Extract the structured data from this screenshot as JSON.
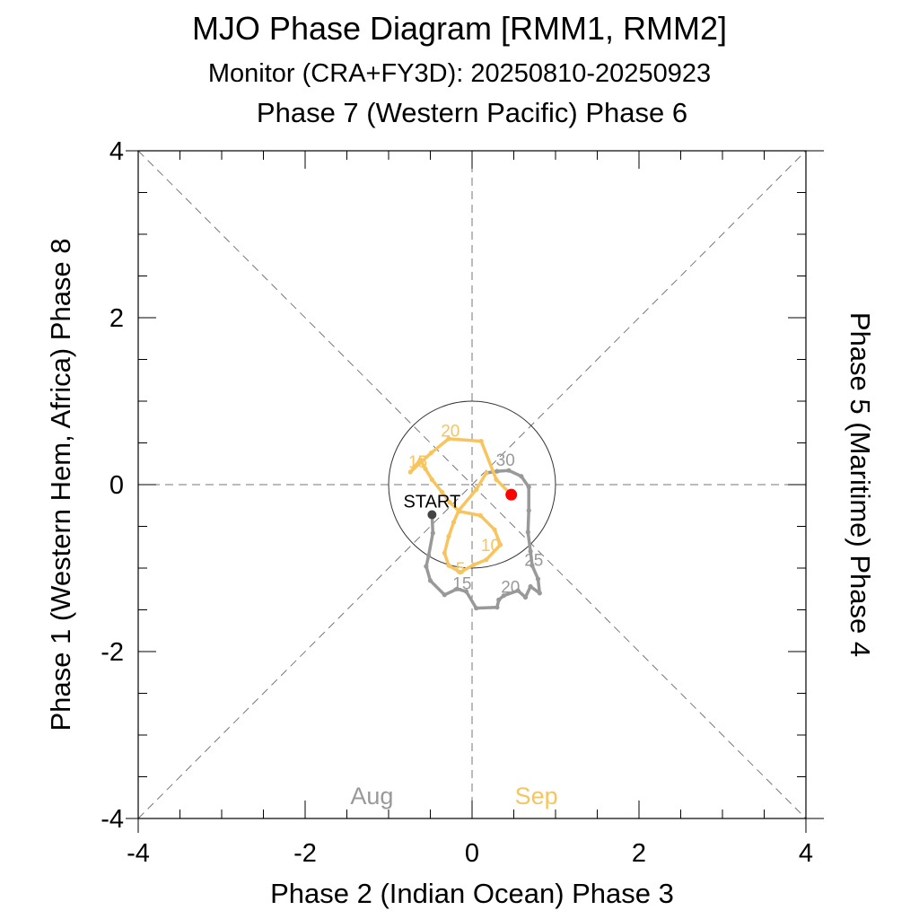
{
  "chart_data": {
    "type": "line",
    "title": "MJO Phase Diagram [RMM1, RMM2]",
    "subtitle": "Monitor (CRA+FY3D): 20250810-20250923",
    "top_label": "Phase 7 (Western Pacific) Phase 6",
    "xlabel": "Phase 2 (Indian Ocean) Phase 3",
    "left_label": "Phase 1 (Western Hem, Africa) Phase 8",
    "right_label": "Phase 5 (Maritime) Phase 4",
    "xlim": [
      -4,
      4
    ],
    "ylim": [
      -4,
      4
    ],
    "xticks": [
      -4,
      -2,
      0,
      2,
      4
    ],
    "yticks": [
      -4,
      -2,
      0,
      2,
      4
    ],
    "xtick_labels": [
      "-4",
      "-2",
      "0",
      "2",
      "4"
    ],
    "ytick_labels": [
      "-4",
      "-2",
      "0",
      "2",
      "4"
    ],
    "unit_circle_radius": 1,
    "start_label": "START",
    "series": [
      {
        "name": "Aug",
        "color": "#999999",
        "points": [
          [
            -0.48,
            -0.36
          ],
          [
            -0.47,
            -0.58
          ],
          [
            -0.52,
            -0.85
          ],
          [
            -0.55,
            -0.98
          ],
          [
            -0.5,
            -1.15
          ],
          [
            -0.33,
            -1.32
          ],
          [
            -0.18,
            -1.25
          ],
          [
            -0.07,
            -1.28
          ],
          [
            0.05,
            -1.48
          ],
          [
            0.3,
            -1.47
          ],
          [
            0.32,
            -1.38
          ],
          [
            0.38,
            -1.33
          ],
          [
            0.55,
            -1.27
          ],
          [
            0.64,
            -1.35
          ],
          [
            0.7,
            -1.22
          ],
          [
            0.81,
            -1.3
          ],
          [
            0.79,
            -1.13
          ],
          [
            0.72,
            -0.97
          ],
          [
            0.7,
            -0.8
          ],
          [
            0.67,
            -0.57
          ],
          [
            0.68,
            -0.31
          ],
          [
            0.68,
            -0.03
          ],
          [
            0.59,
            0.1
          ],
          [
            0.44,
            0.17
          ],
          [
            0.3,
            0.16
          ],
          [
            0.17,
            0.14
          ]
        ],
        "day_labels": [
          {
            "text": "15",
            "x": -0.12,
            "y": -1.18
          },
          {
            "text": "20",
            "x": 0.46,
            "y": -1.22
          },
          {
            "text": "25",
            "x": 0.74,
            "y": -0.9
          },
          {
            "text": "30",
            "x": 0.4,
            "y": 0.3
          }
        ]
      },
      {
        "name": "Sep",
        "color": "#F7C45E",
        "points": [
          [
            0.17,
            0.14
          ],
          [
            0.05,
            -0.06
          ],
          [
            -0.16,
            -0.31
          ],
          [
            -0.22,
            -0.45
          ],
          [
            -0.28,
            -0.62
          ],
          [
            -0.33,
            -0.82
          ],
          [
            -0.28,
            -0.97
          ],
          [
            -0.14,
            -1.05
          ],
          [
            0.02,
            -0.96
          ],
          [
            0.17,
            -0.9
          ],
          [
            0.34,
            -0.72
          ],
          [
            0.27,
            -0.54
          ],
          [
            0.1,
            -0.37
          ],
          [
            -0.15,
            -0.32
          ],
          [
            -0.27,
            -0.21
          ],
          [
            -0.36,
            -0.09
          ],
          [
            -0.48,
            0.06
          ],
          [
            -0.56,
            0.19
          ],
          [
            -0.62,
            0.3
          ],
          [
            -0.74,
            0.15
          ],
          [
            -0.49,
            0.38
          ],
          [
            -0.28,
            0.55
          ],
          [
            0.11,
            0.52
          ],
          [
            0.29,
            0.06
          ],
          [
            0.47,
            -0.12
          ]
        ],
        "day_labels": [
          {
            "text": "5",
            "x": -0.14,
            "y": -1.0
          },
          {
            "text": "10",
            "x": 0.22,
            "y": -0.72
          },
          {
            "text": "15",
            "x": -0.65,
            "y": 0.28
          },
          {
            "text": "20",
            "x": -0.26,
            "y": 0.65
          }
        ]
      }
    ],
    "end_marker_color": "#FF0000",
    "legend": [
      {
        "label": "Aug",
        "color": "#999999"
      },
      {
        "label": "Sep",
        "color": "#F7C45E"
      }
    ]
  }
}
